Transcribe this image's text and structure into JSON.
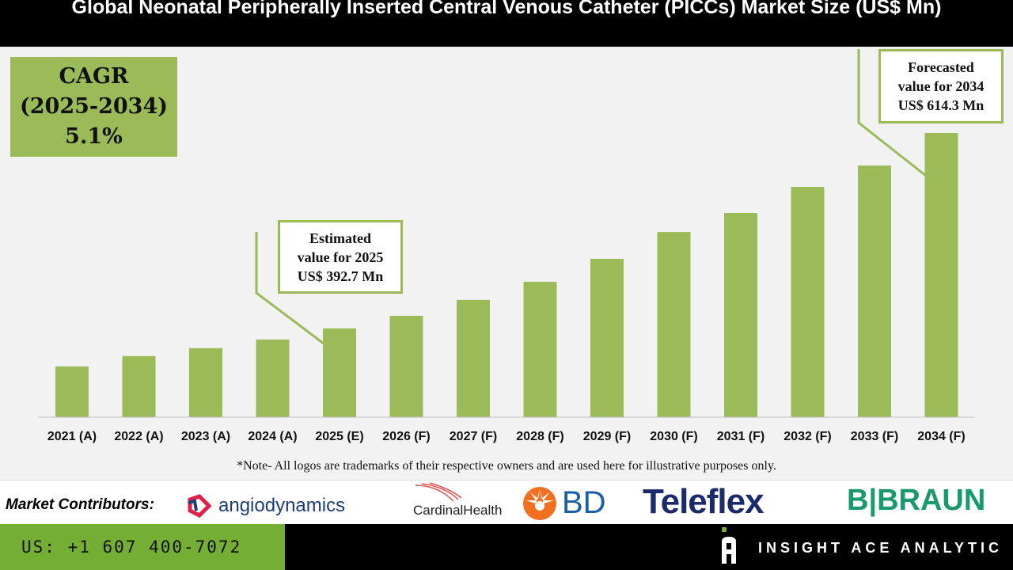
{
  "header": {
    "title": "Global Neonatal Peripherally Inserted Central Venous Catheter (PICCs) Market Size (US$ Mn)"
  },
  "cagr": {
    "line1": "CAGR",
    "line2": "(2025-2034)",
    "line3": "5.1%"
  },
  "callouts": {
    "estimated": {
      "line1": "Estimated",
      "line2": "value for 2025",
      "line3": "US$ 392.7 Mn"
    },
    "forecast": {
      "line1": "Forecasted",
      "line2": "value for 2034",
      "line3": "US$ 614.3 Mn"
    }
  },
  "chart_data": {
    "type": "bar",
    "title": "Global Neonatal Peripherally Inserted Central Venous Catheter (PICCs) Market Size (US$ Mn)",
    "categories": [
      "2021 (A)",
      "2022 (A)",
      "2023 (A)",
      "2024 (A)",
      "2025 (E)",
      "2026 (F)",
      "2027 (F)",
      "2028 (F)",
      "2029 (F)",
      "2030 (F)",
      "2031 (F)",
      "2032 (F)",
      "2033 (F)",
      "2034 (F)"
    ],
    "values": [
      349.6,
      361.3,
      370.3,
      380.1,
      392.7,
      407.0,
      425.0,
      445.6,
      471.6,
      502.0,
      523.6,
      553.2,
      577.4,
      614.3
    ],
    "ylim": [
      292,
      614.3
    ],
    "grid": false,
    "bar_color": "#9bbb59"
  },
  "note": "*Note- All logos are trademarks of their respective owners and are used here for illustrative purposes only.",
  "footer": {
    "contributors_label": "Market Contributors:",
    "logos": [
      "angiodynamics",
      "CardinalHealth",
      "BD",
      "Teleflex",
      "B|BRAUN"
    ],
    "phone": "US: +1 607 400-7072",
    "brand": "INSIGHT ACE ANALYTIC"
  }
}
